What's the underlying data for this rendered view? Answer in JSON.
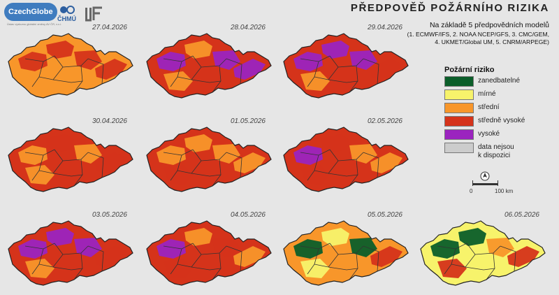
{
  "header": {
    "title": "PŘEDPOVĚĎ POŽÁRNÍHO RIZIKA",
    "subtitle": "Na základě 5 předpovědních modelů",
    "models_line1": "(1. ECMWF/IFS, 2. NOAA NCEP/GFS, 3. CMC/GEM,",
    "models_line2": "4. UKMET/Global UM, 5. CNRM/ARPEGE)"
  },
  "logos": {
    "czechglobe": "CzechGlobe",
    "czechglobe_sub": "Ústav výzkumu globální změny AV ČR, v.v.i.",
    "chmu": "ČHMÚ"
  },
  "legend": {
    "title": "Požární riziko",
    "items": [
      {
        "label": "zanedbatelné",
        "color": "#0b5e2a"
      },
      {
        "label": "mírné",
        "color": "#f7f36b"
      },
      {
        "label": "střední",
        "color": "#f8962a"
      },
      {
        "label": "středně vysoké",
        "color": "#d5331a"
      },
      {
        "label": "vysoké",
        "color": "#9b24bf"
      },
      {
        "label": "data nejsou k dispozici",
        "label_line1": "data nejsou",
        "label_line2": "k dispozici",
        "color": "#cccccc"
      }
    ]
  },
  "scale": {
    "min_label": "0",
    "max_label": "100 km"
  },
  "maps": [
    {
      "date": "27.04.2026",
      "base": "orange",
      "patches": [
        "red",
        "red",
        "red",
        "orange",
        "red"
      ]
    },
    {
      "date": "28.04.2026",
      "base": "red",
      "patches": [
        "purple",
        "orange",
        "purple",
        "orange",
        "purple"
      ]
    },
    {
      "date": "29.04.2026",
      "base": "red",
      "patches": [
        "purple",
        "purple",
        "purple",
        "orange",
        "red"
      ]
    },
    {
      "date": "30.04.2026",
      "base": "red",
      "patches": [
        "orange",
        "red",
        "orange",
        "orange",
        "red"
      ]
    },
    {
      "date": "01.05.2026",
      "base": "red",
      "patches": [
        "orange",
        "orange",
        "orange",
        "red",
        "orange"
      ]
    },
    {
      "date": "02.05.2026",
      "base": "red",
      "patches": [
        "purple",
        "red",
        "orange",
        "red",
        "orange"
      ]
    },
    {
      "date": "03.05.2026",
      "base": "red",
      "patches": [
        "purple",
        "purple",
        "purple",
        "orange",
        "red"
      ]
    },
    {
      "date": "04.05.2026",
      "base": "red",
      "patches": [
        "purple",
        "orange",
        "red",
        "red",
        "orange"
      ]
    },
    {
      "date": "05.05.2026",
      "base": "orange",
      "patches": [
        "green",
        "yellow",
        "green",
        "yellow",
        "red"
      ]
    },
    {
      "date": "06.05.2026",
      "base": "yellow",
      "patches": [
        "green",
        "green",
        "orange",
        "red",
        "red"
      ]
    }
  ]
}
